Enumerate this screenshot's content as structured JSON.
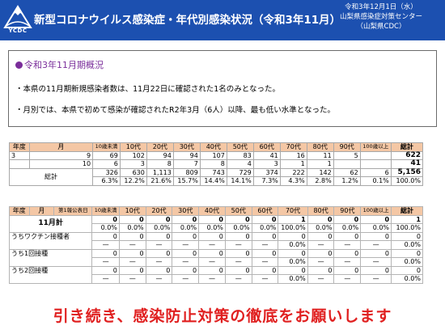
{
  "header": {
    "logo_text": "YCDC",
    "title": "新型コロナウイルス感染症・年代別感染状況（令和3年11月）",
    "date": "令和3年12月1日（水）",
    "org1": "山梨県感染症対策センター",
    "org2": "（山梨県CDC）"
  },
  "colors": {
    "header_bg": "#1c50b0",
    "table_header": "#f4c7a5",
    "heading": "#7a2d9a",
    "footer": "#e02020"
  },
  "summary": {
    "heading": "令和3年11月期概況",
    "lines": [
      "・本県の11月期新規感染者数は、11月22日に確認された1名のみとなった。",
      "・月別では、本県で初めて感染が確認されたR2年3月（6人）以降、最も低い水準となった。"
    ]
  },
  "table1": {
    "headers": [
      "年度",
      "月",
      "10歳未満",
      "10代",
      "20代",
      "30代",
      "40代",
      "50代",
      "60代",
      "70代",
      "80代",
      "90代",
      "100歳以上",
      "総計"
    ],
    "rows": [
      {
        "year": "3",
        "month": "9",
        "values": [
          "69",
          "102",
          "94",
          "94",
          "107",
          "83",
          "41",
          "16",
          "11",
          "5",
          "",
          "622"
        ]
      },
      {
        "year": "",
        "month": "10",
        "values": [
          "6",
          "3",
          "8",
          "7",
          "8",
          "4",
          "3",
          "1",
          "1",
          "",
          "",
          "41"
        ]
      }
    ],
    "total_label": "総計",
    "total": [
      "326",
      "630",
      "1,113",
      "809",
      "743",
      "729",
      "374",
      "222",
      "142",
      "62",
      "6",
      "5,156"
    ],
    "total_pct": [
      "6.3%",
      "12.2%",
      "21.6%",
      "15.7%",
      "14.4%",
      "14.1%",
      "7.3%",
      "4.3%",
      "2.8%",
      "1.2%",
      "0.1%",
      "100.0%"
    ]
  },
  "table2": {
    "headers": [
      "年度",
      "月",
      "第1報公表日",
      "10歳未満",
      "10代",
      "20代",
      "30代",
      "40代",
      "50代",
      "60代",
      "70代",
      "80代",
      "90代",
      "100歳以上",
      "総計"
    ],
    "month_total_label": "11月計",
    "month_total": [
      "0",
      "0",
      "0",
      "0",
      "0",
      "0",
      "0",
      "1",
      "0",
      "0",
      "0",
      "1"
    ],
    "month_total_pct": [
      "0.0%",
      "0.0%",
      "0.0%",
      "0.0%",
      "0.0%",
      "0.0%",
      "0.0%",
      "100.0%",
      "0.0%",
      "0.0%",
      "0.0%",
      "100.0%"
    ],
    "vacc_label": "うちワクチン接種者",
    "vacc": [
      "0",
      "0",
      "0",
      "0",
      "0",
      "0",
      "0",
      "0",
      "0",
      "0",
      "0",
      "0"
    ],
    "vacc_pct": [
      "—",
      "—",
      "—",
      "—",
      "—",
      "—",
      "—",
      "0.0%",
      "—",
      "—",
      "—",
      "0.0%"
    ],
    "once_label": "うち1回接種",
    "once": [
      "0",
      "0",
      "0",
      "0",
      "0",
      "0",
      "0",
      "0",
      "0",
      "0",
      "0",
      "0"
    ],
    "once_pct": [
      "—",
      "—",
      "—",
      "—",
      "—",
      "—",
      "—",
      "0.0%",
      "—",
      "—",
      "—",
      "0.0%"
    ],
    "twice_label": "うち2回接種",
    "twice": [
      "0",
      "0",
      "0",
      "0",
      "0",
      "0",
      "0",
      "0",
      "0",
      "0",
      "0",
      "0"
    ],
    "twice_pct": [
      "—",
      "—",
      "—",
      "—",
      "—",
      "—",
      "—",
      "0.0%",
      "—",
      "—",
      "—",
      "0.0%"
    ]
  },
  "footer": {
    "message": "引き続き、感染防止対策の徹底をお願いします"
  }
}
